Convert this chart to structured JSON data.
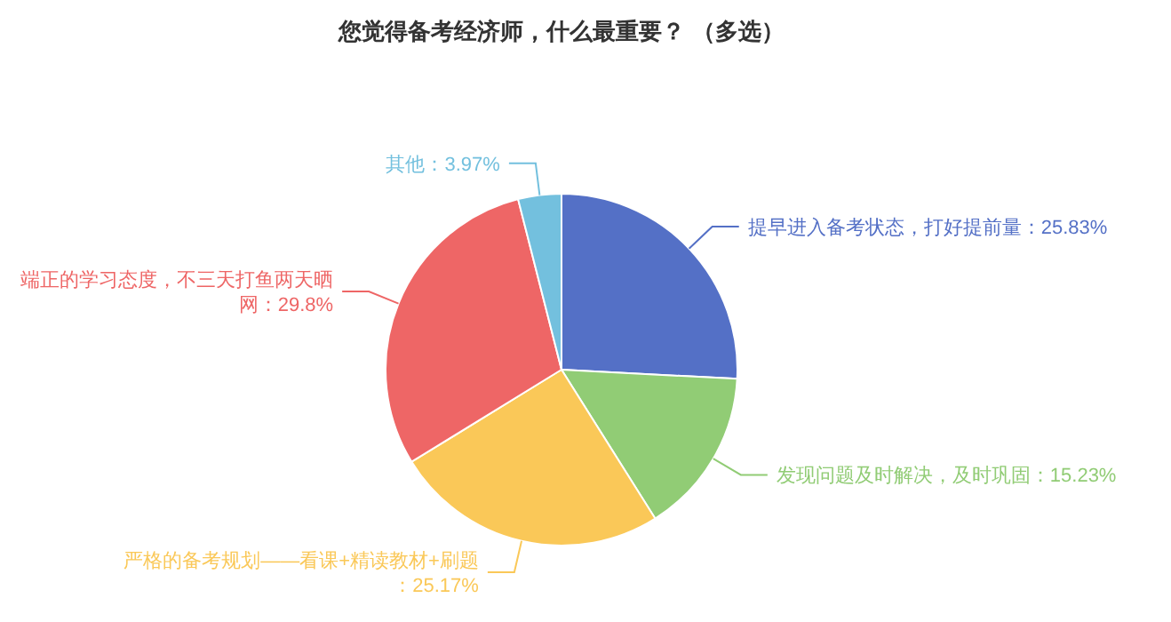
{
  "chart_data": {
    "type": "pie",
    "title": "您觉得备考经济师，什么最重要？ （多选）",
    "categories": [
      "提早进入备考状态，打好提前量",
      "发现问题及时解决，及时巩固",
      "严格的备考规划——看课+精读教材+刷题",
      "端正的学习态度，不三天打鱼两天晒网",
      "其他"
    ],
    "values": [
      25.83,
      15.23,
      25.17,
      29.8,
      3.97
    ],
    "colors": [
      "#5470c6",
      "#91cc75",
      "#fac858",
      "#ee6666",
      "#73c0de"
    ],
    "value_labels": [
      "：25.83%",
      "：15.23%",
      "：25.17%",
      "：29.8%",
      "：3.97%"
    ]
  }
}
